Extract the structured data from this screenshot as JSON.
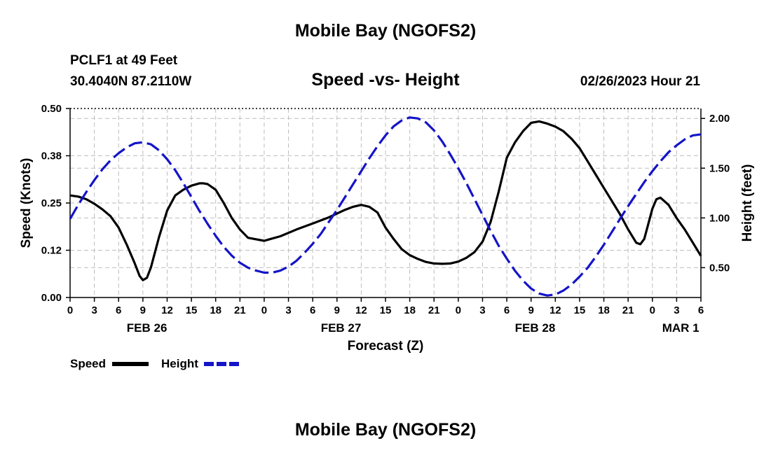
{
  "header": {
    "title": "Mobile Bay (NGOFS2)",
    "station": "PCLF1 at 49 Feet",
    "coords": "30.4040N  87.2110W",
    "subtitle": "Speed -vs- Height",
    "timestamp": "02/26/2023 Hour 21",
    "footer_title": "Mobile Bay (NGOFS2)"
  },
  "chart_data": {
    "type": "line",
    "title": "Speed -vs- Height",
    "xlabel": "Forecast (Z)",
    "ylabel": "Speed (Knots)",
    "y2label": "Height (feet)",
    "xlim": [
      0,
      78
    ],
    "ylim": [
      0,
      0.5
    ],
    "y2lim": [
      0.2,
      2.1
    ],
    "grid": true,
    "x_tick_hours": [
      0,
      3,
      6,
      9,
      12,
      15,
      18,
      21,
      24,
      27,
      30,
      33,
      36,
      39,
      42,
      45,
      48,
      51,
      54,
      57,
      60,
      63,
      66,
      69,
      72,
      75,
      78
    ],
    "x_tick_labels": [
      "0",
      "3",
      "6",
      "9",
      "12",
      "15",
      "18",
      "21",
      "0",
      "3",
      "6",
      "9",
      "12",
      "15",
      "18",
      "21",
      "0",
      "3",
      "6",
      "9",
      "12",
      "15",
      "18",
      "21",
      "0",
      "3",
      "6"
    ],
    "date_labels": [
      {
        "label": "FEB 26",
        "hour": 9.5
      },
      {
        "label": "FEB 27",
        "hour": 33.5
      },
      {
        "label": "FEB 28",
        "hour": 57.5
      },
      {
        "label": "MAR 1",
        "hour": 75.5
      }
    ],
    "y_ticks": [
      0.0,
      0.125,
      0.25,
      0.375,
      0.5
    ],
    "y_tick_labels": [
      "0.00",
      "0.12",
      "0.25",
      "0.38",
      "0.50"
    ],
    "y2_ticks": [
      0.5,
      1.0,
      1.5,
      2.0
    ],
    "y2_tick_labels": [
      "0.50",
      "1.00",
      "1.50",
      "2.00"
    ],
    "series": [
      {
        "name": "Speed",
        "axis": "left",
        "color": "#000000",
        "dash": "solid",
        "x": [
          0,
          1,
          2,
          3,
          4,
          5,
          6,
          7,
          8,
          8.6,
          9,
          9.5,
          10,
          11,
          12,
          13,
          14,
          15,
          16,
          16.5,
          17,
          18,
          19,
          20,
          21,
          22,
          24,
          26,
          28,
          30,
          32,
          33,
          34,
          35,
          36,
          37,
          38,
          39,
          40,
          41,
          42,
          43,
          44,
          45,
          46,
          47,
          48,
          49,
          50,
          51,
          52,
          53,
          54,
          55,
          56,
          57,
          58,
          59,
          60,
          61,
          62,
          63,
          64,
          65,
          66,
          67,
          68,
          69,
          70,
          70.5,
          71,
          72,
          72.5,
          73,
          74,
          75,
          76,
          77,
          78
        ],
        "values": [
          0.27,
          0.267,
          0.26,
          0.248,
          0.233,
          0.215,
          0.185,
          0.14,
          0.09,
          0.057,
          0.046,
          0.052,
          0.08,
          0.16,
          0.23,
          0.27,
          0.285,
          0.296,
          0.302,
          0.302,
          0.3,
          0.285,
          0.25,
          0.21,
          0.18,
          0.158,
          0.15,
          0.162,
          0.18,
          0.196,
          0.212,
          0.222,
          0.232,
          0.24,
          0.245,
          0.24,
          0.225,
          0.185,
          0.155,
          0.128,
          0.112,
          0.102,
          0.094,
          0.09,
          0.089,
          0.09,
          0.095,
          0.105,
          0.12,
          0.148,
          0.2,
          0.28,
          0.37,
          0.41,
          0.44,
          0.462,
          0.466,
          0.46,
          0.452,
          0.44,
          0.42,
          0.395,
          0.36,
          0.325,
          0.29,
          0.255,
          0.22,
          0.18,
          0.145,
          0.141,
          0.155,
          0.235,
          0.26,
          0.264,
          0.245,
          0.21,
          0.18,
          0.145,
          0.11
        ],
        "values_y2_note": ""
      },
      {
        "name": "Height",
        "axis": "right",
        "color": "#1414c8",
        "dash": "dashed",
        "x": [
          0,
          1,
          2,
          3,
          4,
          5,
          6,
          7,
          8,
          9,
          10,
          11,
          12,
          13,
          14,
          15,
          16,
          17,
          18,
          19,
          20,
          21,
          22,
          23,
          24,
          25,
          26,
          27,
          28,
          29,
          30,
          31,
          32,
          33,
          34,
          35,
          36,
          37,
          38,
          39,
          40,
          41,
          42,
          43,
          44,
          45,
          46,
          47,
          48,
          49,
          50,
          51,
          52,
          53,
          54,
          55,
          56,
          57,
          58,
          59,
          60,
          61,
          62,
          63,
          64,
          65,
          66,
          67,
          68,
          69,
          70,
          71,
          72,
          73,
          74,
          75,
          76,
          77,
          78
        ],
        "values": [
          0.99,
          1.13,
          1.26,
          1.38,
          1.49,
          1.58,
          1.65,
          1.71,
          1.75,
          1.76,
          1.74,
          1.68,
          1.59,
          1.48,
          1.35,
          1.21,
          1.07,
          0.94,
          0.82,
          0.71,
          0.62,
          0.55,
          0.5,
          0.47,
          0.45,
          0.45,
          0.47,
          0.51,
          0.57,
          0.65,
          0.74,
          0.84,
          0.96,
          1.08,
          1.21,
          1.34,
          1.47,
          1.6,
          1.72,
          1.83,
          1.92,
          1.98,
          2.01,
          2.0,
          1.96,
          1.88,
          1.77,
          1.64,
          1.5,
          1.35,
          1.19,
          1.03,
          0.87,
          0.72,
          0.59,
          0.47,
          0.37,
          0.29,
          0.24,
          0.22,
          0.23,
          0.27,
          0.33,
          0.41,
          0.5,
          0.61,
          0.73,
          0.86,
          0.99,
          1.12,
          1.24,
          1.36,
          1.47,
          1.57,
          1.66,
          1.73,
          1.79,
          1.83,
          1.84
        ]
      }
    ]
  },
  "legend": {
    "speed_label": "Speed",
    "height_label": "Height"
  }
}
